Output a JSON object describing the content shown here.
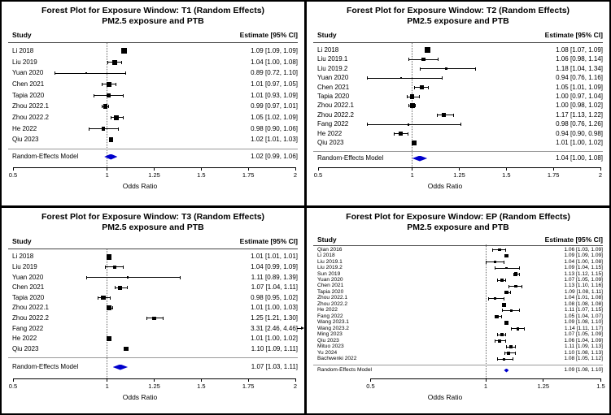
{
  "colors": {
    "marker": "#000000",
    "diamond_fill": "#0000cc",
    "frame": "#000000",
    "background": "#ffffff",
    "reference_line": "#666666"
  },
  "chart_data": [
    {
      "id": "T1",
      "type": "forest",
      "title": "Forest Plot for Exposure Window: T1 (Random Effects)",
      "subtitle": "PM2.5 exposure and PTB",
      "study_header": "Study",
      "estimate_header": "Estimate [95% CI]",
      "xlabel": "Odds Ratio",
      "xlim": [
        0.5,
        2
      ],
      "ticks": [
        0.5,
        1,
        1.25,
        1.5,
        1.75,
        2
      ],
      "refline": 1,
      "studies": [
        {
          "label": "Li 2018",
          "est": 1.09,
          "lo": 1.09,
          "hi": 1.09,
          "text": "1.09 [1.09, 1.09]",
          "w": 7
        },
        {
          "label": "Liu 2019",
          "est": 1.04,
          "lo": 1.0,
          "hi": 1.08,
          "text": "1.04 [1.00, 1.08]",
          "w": 6
        },
        {
          "label": "Yuan 2020",
          "est": 0.89,
          "lo": 0.72,
          "hi": 1.1,
          "text": "0.89 [0.72, 1.10]",
          "w": 2.5
        },
        {
          "label": "Chen 2021",
          "est": 1.01,
          "lo": 0.97,
          "hi": 1.05,
          "text": "1.01 [0.97, 1.05]",
          "w": 5.5
        },
        {
          "label": "Tapia 2020",
          "est": 1.01,
          "lo": 0.93,
          "hi": 1.09,
          "text": "1.01 [0.93, 1.09]",
          "w": 5
        },
        {
          "label": "Zhou 2022.1",
          "est": 0.99,
          "lo": 0.97,
          "hi": 1.01,
          "text": "0.99 [0.97, 1.01]",
          "w": 5.5
        },
        {
          "label": "Zhou 2022.2",
          "est": 1.05,
          "lo": 1.02,
          "hi": 1.09,
          "text": "1.05 [1.02, 1.09]",
          "w": 6
        },
        {
          "label": "He 2022",
          "est": 0.98,
          "lo": 0.9,
          "hi": 1.06,
          "text": "0.98 [0.90, 1.06]",
          "w": 4.5
        },
        {
          "label": "Qiu 2023",
          "est": 1.02,
          "lo": 1.01,
          "hi": 1.03,
          "text": "1.02 [1.01, 1.03]",
          "w": 5.5
        }
      ],
      "model": {
        "label": "Random-Effects Model",
        "est": 1.02,
        "lo": 0.99,
        "hi": 1.06,
        "text": "1.02 [0.99, 1.06]"
      }
    },
    {
      "id": "T2",
      "type": "forest",
      "title": "Forest Plot for Exposure Window: T2 (Random Effects)",
      "subtitle": "PM2.5 exposure and PTB",
      "study_header": "Study",
      "estimate_header": "Estimate [95% CI]",
      "xlabel": "Odds Ratio",
      "xlim": [
        0.5,
        2
      ],
      "ticks": [
        0.5,
        1,
        1.25,
        1.5,
        1.75,
        2
      ],
      "refline": 1,
      "studies": [
        {
          "label": "Li 2018",
          "est": 1.08,
          "lo": 1.07,
          "hi": 1.09,
          "text": "1.08 [1.07, 1.09]",
          "w": 7
        },
        {
          "label": "Liu 2019.1",
          "est": 1.06,
          "lo": 0.98,
          "hi": 1.14,
          "text": "1.06 [0.98, 1.14]",
          "w": 4.5
        },
        {
          "label": "Liu 2019.2",
          "est": 1.18,
          "lo": 1.04,
          "hi": 1.34,
          "text": "1.18 [1.04, 1.34]",
          "w": 3.5
        },
        {
          "label": "Yuan 2020",
          "est": 0.94,
          "lo": 0.76,
          "hi": 1.16,
          "text": "0.94 [0.76, 1.16]",
          "w": 2.5
        },
        {
          "label": "Chen 2021",
          "est": 1.05,
          "lo": 1.01,
          "hi": 1.09,
          "text": "1.05 [1.01, 1.09]",
          "w": 5
        },
        {
          "label": "Tapia 2020",
          "est": 1.0,
          "lo": 0.97,
          "hi": 1.04,
          "text": "1.00 [0.97, 1.04]",
          "w": 5.5
        },
        {
          "label": "Zhou 2022.1",
          "est": 1.0,
          "lo": 0.98,
          "hi": 1.02,
          "text": "1.00 [0.98, 1.02]",
          "w": 6
        },
        {
          "label": "Zhou 2022.2",
          "est": 1.17,
          "lo": 1.13,
          "hi": 1.22,
          "text": "1.17 [1.13, 1.22]",
          "w": 5
        },
        {
          "label": "Fang 2022",
          "est": 0.98,
          "lo": 0.76,
          "hi": 1.26,
          "text": "0.98 [0.76, 1.26]",
          "w": 2.5
        },
        {
          "label": "He 2022",
          "est": 0.94,
          "lo": 0.9,
          "hi": 0.98,
          "text": "0.94 [0.90, 0.98]",
          "w": 5
        },
        {
          "label": "Qiu 2023",
          "est": 1.01,
          "lo": 1.0,
          "hi": 1.02,
          "text": "1.01 [1.00, 1.02]",
          "w": 6
        }
      ],
      "model": {
        "label": "Random-Effects Model",
        "est": 1.04,
        "lo": 1.0,
        "hi": 1.08,
        "text": "1.04 [1.00, 1.08]"
      }
    },
    {
      "id": "T3",
      "type": "forest",
      "title": "Forest Plot for Exposure Window: T3 (Random Effects)",
      "subtitle": "PM2.5 exposure and PTB",
      "study_header": "Study",
      "estimate_header": "Estimate [95% CI]",
      "xlabel": "Odds Ratio",
      "xlim": [
        0.5,
        2
      ],
      "ticks": [
        0.5,
        1,
        1.25,
        1.5,
        1.75,
        2
      ],
      "refline": 1,
      "studies": [
        {
          "label": "Li 2018",
          "est": 1.01,
          "lo": 1.01,
          "hi": 1.01,
          "text": "1.01 [1.01, 1.01]",
          "w": 6.5
        },
        {
          "label": "Liu 2019",
          "est": 1.04,
          "lo": 0.99,
          "hi": 1.09,
          "text": "1.04 [0.99, 1.09]",
          "w": 4.5
        },
        {
          "label": "Yuan 2020",
          "est": 1.11,
          "lo": 0.89,
          "hi": 1.39,
          "text": "1.11 [0.89, 1.39]",
          "w": 2.5
        },
        {
          "label": "Chen 2021",
          "est": 1.07,
          "lo": 1.04,
          "hi": 1.11,
          "text": "1.07 [1.04, 1.11]",
          "w": 5
        },
        {
          "label": "Tapia 2020",
          "est": 0.98,
          "lo": 0.95,
          "hi": 1.02,
          "text": "0.98 [0.95, 1.02]",
          "w": 5.5
        },
        {
          "label": "Zhou 2022.1",
          "est": 1.01,
          "lo": 1.0,
          "hi": 1.03,
          "text": "1.01 [1.00, 1.03]",
          "w": 6
        },
        {
          "label": "Zhou 2022.2",
          "est": 1.25,
          "lo": 1.21,
          "hi": 1.3,
          "text": "1.25 [1.21, 1.30]",
          "w": 4.5
        },
        {
          "label": "Fang 2022",
          "est": 3.31,
          "lo": 2.46,
          "hi": 4.46,
          "text": "3.31 [2.46, 4.46]",
          "w": 2.5,
          "offscale_right": true
        },
        {
          "label": "He 2022",
          "est": 1.01,
          "lo": 1.0,
          "hi": 1.02,
          "text": "1.01 [1.00, 1.02]",
          "w": 6.5
        },
        {
          "label": "Qiu 2023",
          "est": 1.1,
          "lo": 1.09,
          "hi": 1.11,
          "text": "1.10 [1.09, 1.11]",
          "w": 5.5
        }
      ],
      "model": {
        "label": "Random-Effects Model",
        "est": 1.07,
        "lo": 1.03,
        "hi": 1.11,
        "text": "1.07 [1.03, 1.11]"
      }
    },
    {
      "id": "EP",
      "type": "forest",
      "title": "Forest Plot for Exposure Window: EP (Random Effects)",
      "subtitle": "PM2.5 exposure and PTB",
      "study_header": "Study",
      "estimate_header": "Estimate [95% CI]",
      "xlabel": "Odds Ratio",
      "xlim": [
        0.5,
        1.5
      ],
      "ticks": [
        0.5,
        1,
        1.25,
        1.5
      ],
      "refline": 1,
      "studies": [
        {
          "label": "Qian 2016",
          "est": 1.06,
          "lo": 1.03,
          "hi": 1.09,
          "text": "1.06 [1.03, 1.09]",
          "w": 3.5
        },
        {
          "label": "Li 2018",
          "est": 1.09,
          "lo": 1.09,
          "hi": 1.09,
          "text": "1.09 [1.09, 1.09]",
          "w": 4.5
        },
        {
          "label": "Liu 2019.1",
          "est": 1.04,
          "lo": 1.0,
          "hi": 1.08,
          "text": "1.04 [1.00, 1.08]",
          "w": 3
        },
        {
          "label": "Liu 2019.2",
          "est": 1.09,
          "lo": 1.04,
          "hi": 1.15,
          "text": "1.09 [1.04, 1.15]",
          "w": 2.5
        },
        {
          "label": "Sun 2019",
          "est": 1.13,
          "lo": 1.12,
          "hi": 1.15,
          "text": "1.13 [1.12, 1.15]",
          "w": 4.5
        },
        {
          "label": "Yuan 2020",
          "est": 1.07,
          "lo": 1.05,
          "hi": 1.09,
          "text": "1.07 [1.05, 1.09]",
          "w": 4
        },
        {
          "label": "Chen 2021",
          "est": 1.13,
          "lo": 1.1,
          "hi": 1.16,
          "text": "1.13 [1.10, 1.16]",
          "w": 3.5
        },
        {
          "label": "Tapia 2020",
          "est": 1.09,
          "lo": 1.08,
          "hi": 1.11,
          "text": "1.09 [1.08, 1.11]",
          "w": 4.5
        },
        {
          "label": "Zhou 2022.1",
          "est": 1.04,
          "lo": 1.01,
          "hi": 1.08,
          "text": "1.04 [1.01, 1.08]",
          "w": 3
        },
        {
          "label": "Zhou 2022.2",
          "est": 1.08,
          "lo": 1.08,
          "hi": 1.08,
          "text": "1.08 [1.08, 1.08]",
          "w": 5
        },
        {
          "label": "He 2022",
          "est": 1.11,
          "lo": 1.07,
          "hi": 1.15,
          "text": "1.11 [1.07, 1.15]",
          "w": 3
        },
        {
          "label": "Fang 2022",
          "est": 1.05,
          "lo": 1.04,
          "hi": 1.07,
          "text": "1.05 [1.04, 1.07]",
          "w": 4
        },
        {
          "label": "Wang 2023.1",
          "est": 1.09,
          "lo": 1.08,
          "hi": 1.1,
          "text": "1.09 [1.08, 1.10]",
          "w": 4.5
        },
        {
          "label": "Wang 2023.2",
          "est": 1.14,
          "lo": 1.11,
          "hi": 1.17,
          "text": "1.14 [1.11, 1.17]",
          "w": 3.5
        },
        {
          "label": "Ming 2023",
          "est": 1.07,
          "lo": 1.05,
          "hi": 1.09,
          "text": "1.07 [1.05, 1.09]",
          "w": 4
        },
        {
          "label": "Qiu 2023",
          "est": 1.06,
          "lo": 1.04,
          "hi": 1.09,
          "text": "1.06 [1.04, 1.09]",
          "w": 3.5
        },
        {
          "label": "Mituo 2023",
          "est": 1.11,
          "lo": 1.09,
          "hi": 1.13,
          "text": "1.11 [1.09, 1.13]",
          "w": 4
        },
        {
          "label": "Yu 2024",
          "est": 1.1,
          "lo": 1.08,
          "hi": 1.13,
          "text": "1.10 [1.08, 1.13]",
          "w": 4
        },
        {
          "label": "Bachwenki 2022",
          "est": 1.08,
          "lo": 1.05,
          "hi": 1.12,
          "text": "1.08 [1.05, 1.12]",
          "w": 3
        }
      ],
      "model": {
        "label": "Random-Effects Model",
        "est": 1.09,
        "lo": 1.08,
        "hi": 1.1,
        "text": "1.09 [1.08, 1.10]"
      }
    }
  ]
}
